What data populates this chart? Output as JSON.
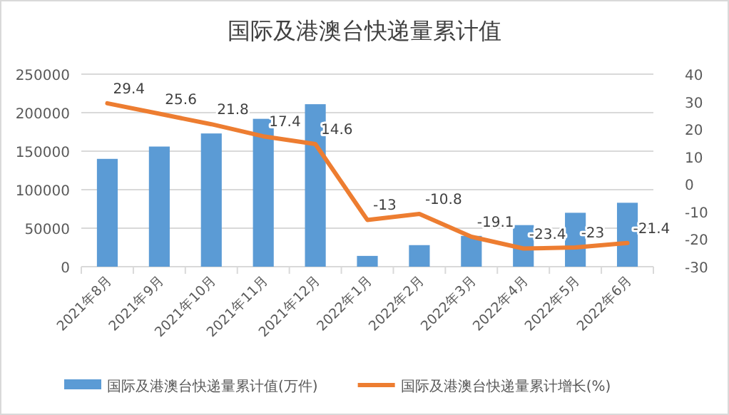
{
  "chart_data": {
    "type": "bar",
    "title": "国际及港澳台快递量累计值",
    "categories": [
      "2021年8月",
      "2021年9月",
      "2021年10月",
      "2021年11月",
      "2021年12月",
      "2022年1月",
      "2022年2月",
      "2022年3月",
      "2022年4月",
      "2022年5月",
      "2022年6月"
    ],
    "series": [
      {
        "name": "国际及港澳台快递量累计值(万件)",
        "color": "#5b9bd5",
        "values": [
          140000,
          156000,
          173000,
          192000,
          211000,
          14000,
          28000,
          40000,
          54000,
          70000,
          83000
        ]
      },
      {
        "name": "国际及港澳台快递量累计增长(%)",
        "type": "line",
        "axis": "y2",
        "color": "#ed7d31",
        "values": [
          29.4,
          25.6,
          21.8,
          17.4,
          14.6,
          -13,
          -10.8,
          -19.1,
          -23.4,
          -23,
          -21.4
        ],
        "value_labels": [
          "29.4",
          "25.6",
          "21.8",
          "17.4",
          "14.6",
          "-13",
          "-10.8",
          "-19.1",
          "-23.4",
          "-23",
          "-21.4"
        ]
      }
    ],
    "ylim": [
      0,
      250000
    ],
    "yticks": [
      0,
      50000,
      100000,
      150000,
      200000,
      250000
    ],
    "y2lim": [
      -30,
      40
    ],
    "y2ticks": [
      -30,
      -20,
      -10,
      0,
      10,
      20,
      30,
      40
    ],
    "grid": "y",
    "legend": "bottom"
  }
}
